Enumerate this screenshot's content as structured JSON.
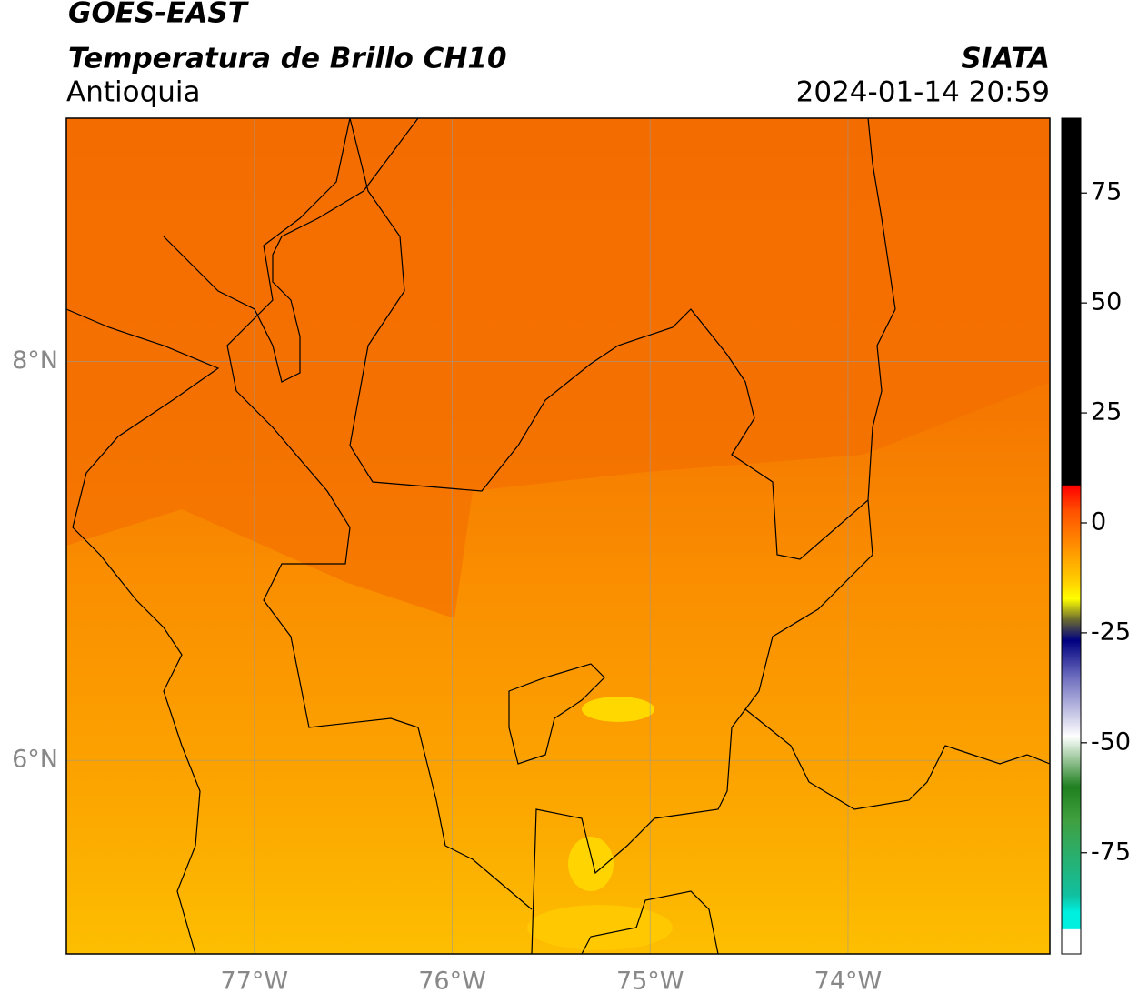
{
  "header": {
    "title": "GOES-EAST",
    "subtitle": "Temperatura de Brillo CH10",
    "region": "Antioquia",
    "source": "SIATA",
    "datetime": "2024-01-14 20:59"
  },
  "map": {
    "xlim": [
      -77.95,
      -72.98
    ],
    "ylim": [
      5.03,
      9.22
    ],
    "xticks": [
      {
        "value": -77,
        "label": "77°W"
      },
      {
        "value": -76,
        "label": "76°W"
      },
      {
        "value": -75,
        "label": "75°W"
      },
      {
        "value": -74,
        "label": "74°W"
      }
    ],
    "yticks": [
      {
        "value": 6,
        "label": "6°N"
      },
      {
        "value": 8,
        "label": "8°N"
      }
    ]
  },
  "colorbar": {
    "lim": [
      -98,
      92
    ],
    "ticks": [
      75,
      50,
      25,
      0,
      -25,
      -50,
      -75
    ]
  }
}
